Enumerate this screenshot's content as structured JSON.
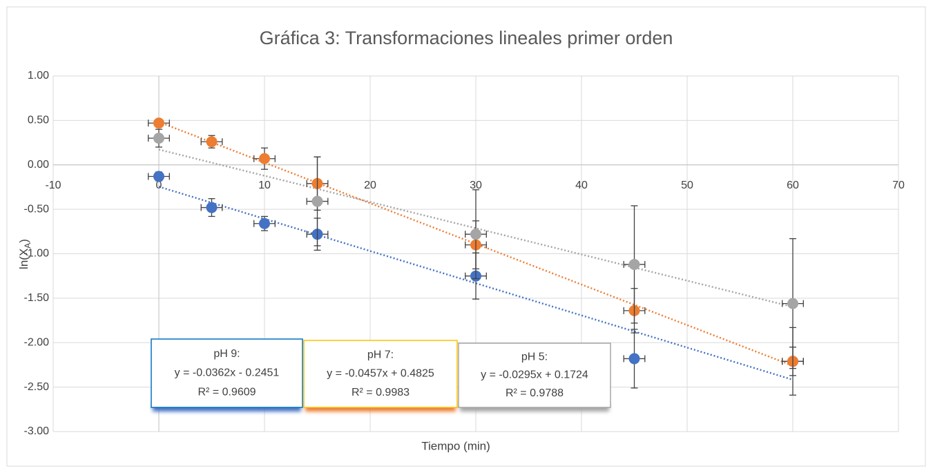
{
  "chart_data": {
    "type": "scatter",
    "title": "Gráfica 3: Transformaciones lineales primer orden",
    "xlabel": "Tiempo (min)",
    "ylabel": {
      "text": "ln(X",
      "subscript": "A",
      "suffix": ")"
    },
    "xlim": [
      -10,
      70
    ],
    "xticks": [
      -10,
      0,
      10,
      20,
      30,
      40,
      50,
      60,
      70
    ],
    "ylim": [
      -3,
      1
    ],
    "yticks": [
      {
        "value": 1,
        "label": "1.00"
      },
      {
        "value": 0.5,
        "label": "0.50"
      },
      {
        "value": 0,
        "label": "0.00"
      },
      {
        "value": -0.5,
        "label": "-0.50"
      },
      {
        "value": -1,
        "label": "-1.00"
      },
      {
        "value": -1.5,
        "label": "-1.50"
      },
      {
        "value": -2,
        "label": "-2.00"
      },
      {
        "value": -2.5,
        "label": "-2.50"
      },
      {
        "value": -3,
        "label": "-3.00"
      }
    ],
    "grid": true,
    "series": [
      {
        "name": "pH 9",
        "color": "#4472c4",
        "x": [
          0,
          5,
          10,
          15,
          30,
          45,
          60
        ],
        "values": [
          -0.13,
          -0.48,
          -0.66,
          -0.78,
          -1.25,
          -2.18,
          -2.21
        ],
        "x_errors": [
          1,
          1,
          1,
          1,
          1,
          1,
          1
        ],
        "y_errors": [
          0.05,
          0.1,
          0.08,
          0.18,
          0.26,
          0.33,
          0.38
        ],
        "trendline": {
          "slope": -0.0362,
          "intercept": -0.2451,
          "label_title": "pH 9:",
          "equation": "y = -0.0362x - 0.2451",
          "r2": "R² = 0.9609",
          "label_border": "#0070c0"
        }
      },
      {
        "name": "pH 7",
        "color": "#ed7d31",
        "x": [
          0,
          5,
          10,
          15,
          30,
          45,
          60
        ],
        "values": [
          0.47,
          0.26,
          0.07,
          -0.21,
          -0.9,
          -1.64,
          -2.21
        ],
        "x_errors": [
          1,
          1,
          1,
          1,
          1,
          1,
          1
        ],
        "y_errors": [
          0.02,
          0.07,
          0.12,
          0.3,
          0.27,
          0.25,
          0.16
        ],
        "trendline": {
          "slope": -0.0457,
          "intercept": 0.4825,
          "label_title": "pH 7:",
          "equation": "y = -0.0457x + 0.4825",
          "r2": "R² = 0.9983",
          "label_border": "#ffc000"
        }
      },
      {
        "name": "pH 5",
        "color": "#a5a5a5",
        "x": [
          0,
          15,
          30,
          45,
          60
        ],
        "values": [
          0.3,
          -0.41,
          -0.78,
          -1.12,
          -1.56
        ],
        "x_errors": [
          1,
          1,
          1,
          1,
          1
        ],
        "y_errors": [
          0.1,
          0.5,
          0.5,
          0.66,
          0.73
        ],
        "trendline": {
          "slope": -0.0295,
          "intercept": 0.1724,
          "label_title": "pH 5:",
          "equation": "y = -0.0295x + 0.1724",
          "r2": "R² = 0.9788",
          "label_border": "#a5a5a5"
        }
      }
    ]
  }
}
